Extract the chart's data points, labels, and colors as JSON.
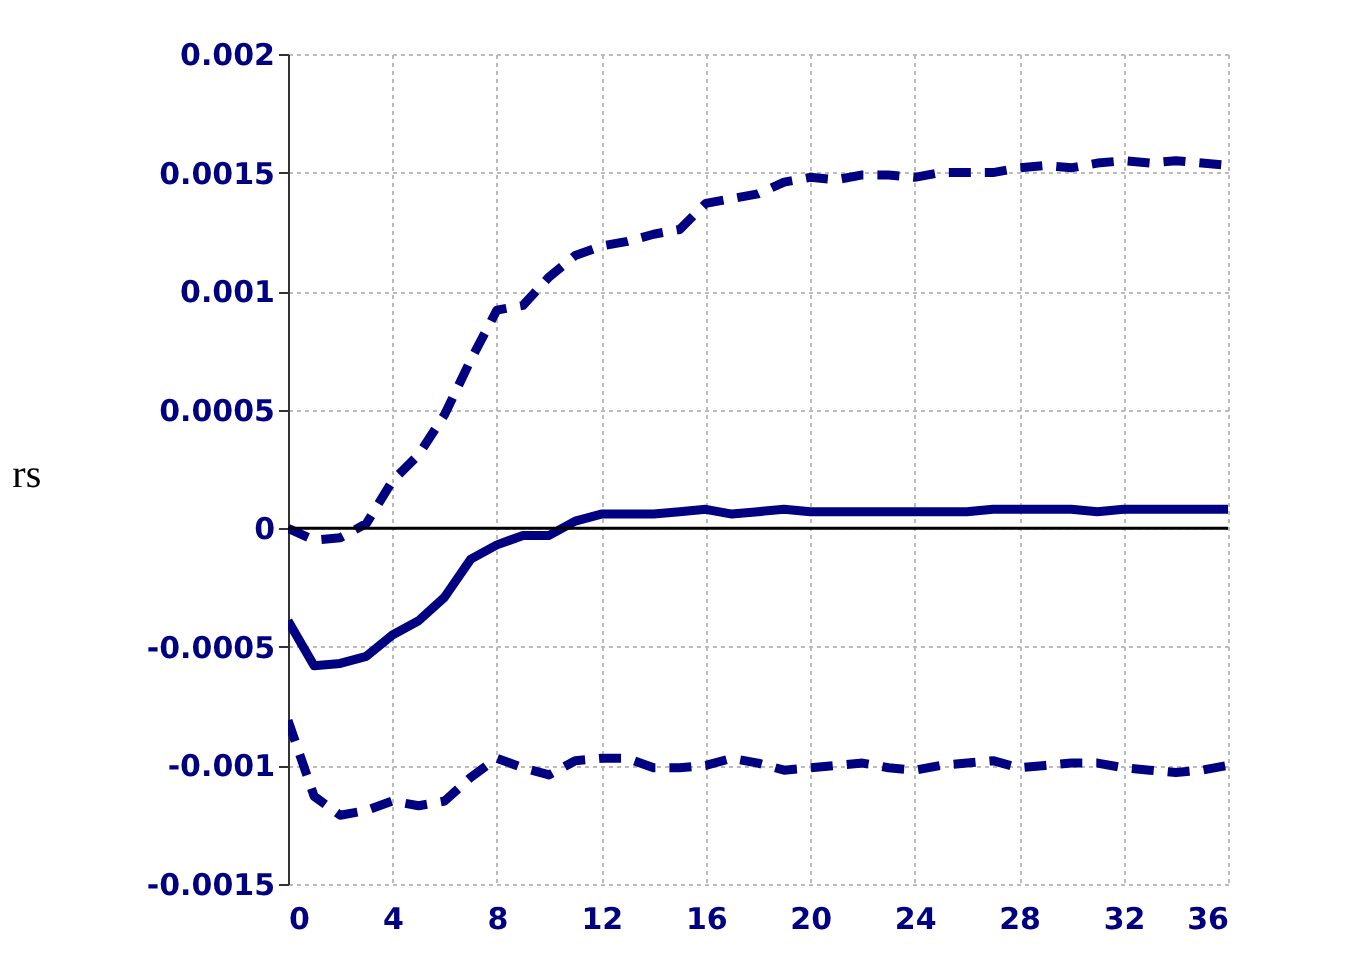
{
  "chart_data": {
    "type": "line",
    "ylabel": "rs",
    "x": [
      0,
      1,
      2,
      3,
      4,
      5,
      6,
      7,
      8,
      9,
      10,
      11,
      12,
      13,
      14,
      15,
      16,
      17,
      18,
      19,
      20,
      21,
      22,
      23,
      24,
      25,
      26,
      27,
      28,
      29,
      30,
      31,
      32,
      33,
      34,
      35,
      36
    ],
    "series": [
      {
        "color": "#000080",
        "line_style": "dashed",
        "values": [
          0,
          -5e-05,
          -4e-05,
          2e-05,
          0.0002,
          0.00031,
          0.00048,
          0.00071,
          0.00092,
          0.00094,
          0.00106,
          0.00115,
          0.00119,
          0.00121,
          0.00124,
          0.00126,
          0.00137,
          0.00139,
          0.00141,
          0.00146,
          0.00148,
          0.00147,
          0.00149,
          0.00149,
          0.00148,
          0.0015,
          0.0015,
          0.0015,
          0.00152,
          0.00153,
          0.00152,
          0.00154,
          0.00155,
          0.00154,
          0.00155,
          0.00154,
          0.00153
        ]
      },
      {
        "color": "#000080",
        "line_style": "solid",
        "values": [
          -0.00039,
          -0.00058,
          -0.00057,
          -0.00054,
          -0.00045,
          -0.00039,
          -0.00029,
          -0.00013,
          -7e-05,
          -3e-05,
          -3e-05,
          3e-05,
          6e-05,
          6e-05,
          6e-05,
          7e-05,
          8e-05,
          6e-05,
          7e-05,
          8e-05,
          7e-05,
          7e-05,
          7e-05,
          7e-05,
          7e-05,
          7e-05,
          7e-05,
          8e-05,
          8e-05,
          8e-05,
          8e-05,
          7e-05,
          8e-05,
          8e-05,
          8e-05,
          8e-05,
          8e-05
        ]
      },
      {
        "color": "#000080",
        "line_style": "dashed",
        "values": [
          -0.00081,
          -0.00113,
          -0.00121,
          -0.00119,
          -0.00115,
          -0.00117,
          -0.00115,
          -0.00105,
          -0.00097,
          -0.00101,
          -0.00104,
          -0.00098,
          -0.00097,
          -0.00097,
          -0.00101,
          -0.00101,
          -0.001,
          -0.00097,
          -0.00099,
          -0.00102,
          -0.00101,
          -0.001,
          -0.00099,
          -0.00101,
          -0.00102,
          -0.001,
          -0.00099,
          -0.00098,
          -0.00101,
          -0.001,
          -0.00099,
          -0.00099,
          -0.00101,
          -0.00102,
          -0.00103,
          -0.00102,
          -0.001
        ]
      }
    ],
    "xlim": [
      0,
      36
    ],
    "xticks": [
      0,
      4,
      8,
      12,
      16,
      20,
      24,
      28,
      32,
      36
    ],
    "ylim": [
      -0.0015,
      0.002
    ],
    "yticks": [
      -0.0015,
      -0.001,
      -0.0005,
      0,
      0.0005,
      0.001,
      0.0015,
      0.002
    ],
    "ref_lines": [
      {
        "axis": "y",
        "value": 0,
        "color": "#000000"
      }
    ],
    "grid": true,
    "marker": "none"
  }
}
